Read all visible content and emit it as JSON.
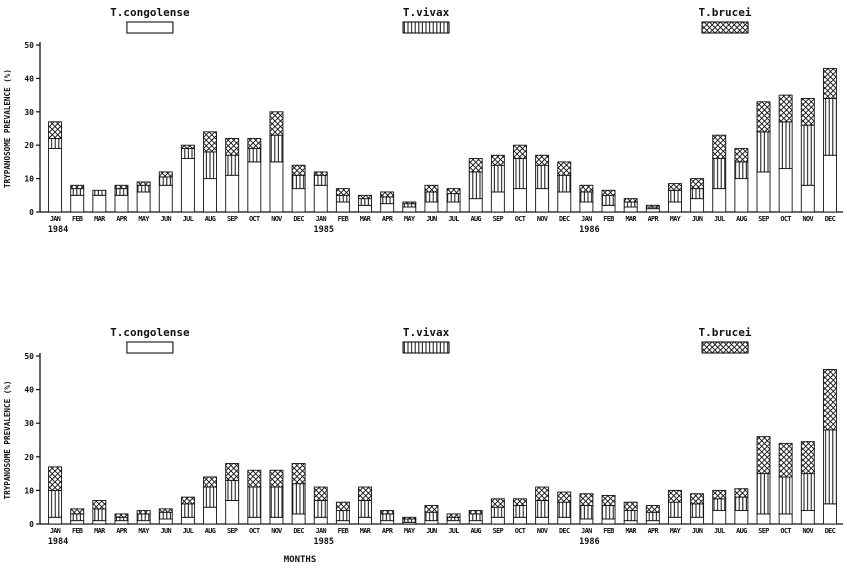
{
  "figure": {
    "y_axis_label": "TRYPANOSOME PREVALENCE (%)",
    "x_axis_label": "MONTHS",
    "ink_color": "#111111",
    "background_color": "#ffffff"
  },
  "legend": {
    "entries": [
      {
        "label": "T.congolense",
        "pattern": "open"
      },
      {
        "label": "T.vivax",
        "pattern": "vertical-stripes"
      },
      {
        "label": "T.brucei",
        "pattern": "crosshatch"
      }
    ]
  },
  "axis": {
    "yticks": [
      0,
      10,
      20,
      30,
      40,
      50
    ],
    "ylim": [
      0,
      50
    ]
  },
  "years": [
    {
      "label": "1984",
      "month_index": 0
    },
    {
      "label": "1985",
      "month_index": 12
    },
    {
      "label": "1986",
      "month_index": 24
    }
  ],
  "chart_data": [
    {
      "type": "bar",
      "stacked": true,
      "panel": "top",
      "ylabel": "TRYPANOSOME PREVALENCE (%)",
      "xlabel": "",
      "ylim": [
        0,
        50
      ],
      "grid": false,
      "legend_position": "above",
      "categories": [
        "JAN",
        "FEB",
        "MAR",
        "APR",
        "MAY",
        "JUN",
        "JUL",
        "AUG",
        "SEP",
        "OCT",
        "NOV",
        "DEC",
        "JAN",
        "FEB",
        "MAR",
        "APR",
        "MAY",
        "JUN",
        "JUL",
        "AUG",
        "SEP",
        "OCT",
        "NOV",
        "DEC",
        "JAN",
        "FEB",
        "MAR",
        "APR",
        "MAY",
        "JUN",
        "JUL",
        "AUG",
        "SEP",
        "OCT",
        "NOV",
        "DEC"
      ],
      "series": [
        {
          "name": "T.congolense",
          "pattern": "open",
          "values": [
            19,
            5,
            5,
            5,
            6,
            8,
            16,
            10,
            11,
            15,
            15,
            7,
            8,
            3,
            2,
            2.5,
            1.5,
            3,
            3,
            4,
            6,
            7,
            7,
            6,
            3,
            2,
            1.5,
            1,
            3,
            4,
            7,
            10,
            12,
            13,
            8,
            17
          ]
        },
        {
          "name": "T.vivax",
          "pattern": "vertical-stripes",
          "values": [
            3,
            2,
            1.5,
            2,
            2,
            2.5,
            3,
            8,
            6,
            4,
            8,
            4,
            3,
            2,
            2,
            2,
            1,
            3,
            2.5,
            8,
            8,
            9,
            7,
            5,
            3,
            3,
            1.5,
            0.5,
            3.5,
            3,
            9,
            5,
            12,
            14,
            18,
            17
          ]
        },
        {
          "name": "T.brucei",
          "pattern": "crosshatch",
          "values": [
            5,
            1,
            0,
            1,
            1,
            1.5,
            1,
            6,
            5,
            3,
            7,
            3,
            1,
            2,
            1,
            1.5,
            0.5,
            2,
            1.5,
            4,
            3,
            4,
            3,
            4,
            2,
            1.5,
            1,
            0.5,
            2,
            3,
            7,
            4,
            9,
            8,
            8,
            9
          ]
        }
      ]
    },
    {
      "type": "bar",
      "stacked": true,
      "panel": "bottom",
      "ylabel": "TRYPANOSOME PREVALENCE (%)",
      "xlabel": "MONTHS",
      "ylim": [
        0,
        50
      ],
      "grid": false,
      "legend_position": "above",
      "categories": [
        "JAN",
        "FEB",
        "MAR",
        "APR",
        "MAY",
        "JUN",
        "JUL",
        "AUG",
        "SEP",
        "OCT",
        "NOV",
        "DEC",
        "JAN",
        "FEB",
        "MAR",
        "APR",
        "MAY",
        "JUN",
        "JUL",
        "AUG",
        "SEP",
        "OCT",
        "NOV",
        "DEC",
        "JAN",
        "FEB",
        "MAR",
        "APR",
        "MAY",
        "JUN",
        "JUL",
        "AUG",
        "SEP",
        "OCT",
        "NOV",
        "DEC"
      ],
      "series": [
        {
          "name": "T.congolense",
          "pattern": "open",
          "values": [
            2,
            1,
            1,
            1,
            1,
            1.5,
            2,
            5,
            7,
            2,
            2,
            3,
            2,
            1,
            2,
            1,
            0.5,
            1,
            1,
            1,
            2,
            2,
            2,
            2,
            1.5,
            1.5,
            1,
            1,
            2,
            2,
            4,
            4,
            3,
            3,
            4,
            6
          ]
        },
        {
          "name": "T.vivax",
          "pattern": "vertical-stripes",
          "values": [
            8,
            2,
            3.5,
            1,
            2,
            2,
            4,
            6,
            6,
            9,
            9,
            9,
            5,
            3,
            5,
            2,
            1,
            2.5,
            1,
            2,
            3,
            3.5,
            5,
            4.5,
            4,
            4,
            3,
            2.5,
            4.5,
            4,
            3.5,
            4,
            12,
            11,
            11,
            22
          ]
        },
        {
          "name": "T.brucei",
          "pattern": "crosshatch",
          "values": [
            7,
            1.5,
            2.5,
            1,
            1,
            1,
            2,
            3,
            5,
            5,
            5,
            6,
            4,
            2.5,
            4,
            1,
            0.5,
            2,
            1,
            1,
            2.5,
            2,
            4,
            3,
            3.5,
            3,
            2.5,
            2,
            3.5,
            3,
            2.5,
            2.5,
            11,
            10,
            9.5,
            18
          ]
        }
      ]
    }
  ]
}
